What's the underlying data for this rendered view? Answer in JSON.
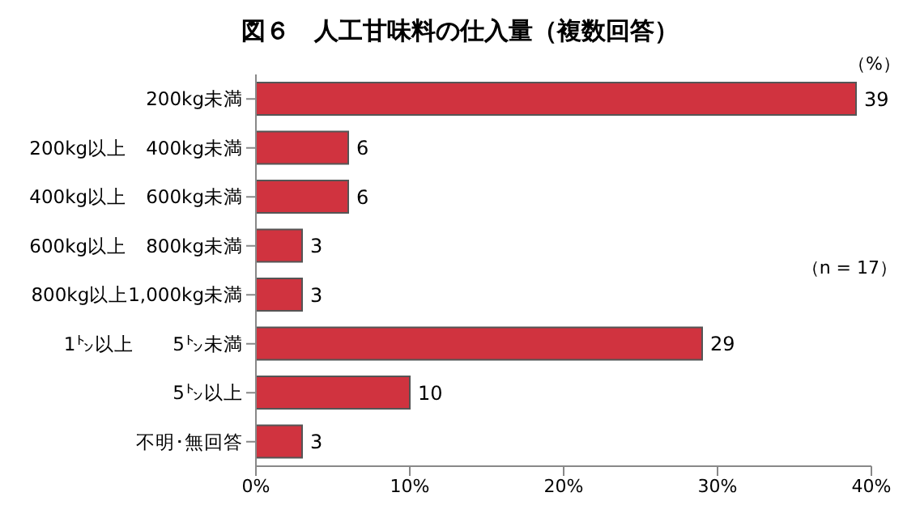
{
  "chart_data": {
    "type": "bar",
    "orientation": "horizontal",
    "title": "図６　人工甘味料の仕入量（複数回答）",
    "categories": [
      "200kg未満",
      "200kg以上　400kg未満",
      "400kg以上　600kg未満",
      "600kg以上　800kg未満",
      "800kg以上1,000kg未満",
      "1㌧以上　　5㌧未満",
      "5㌧以上",
      "不明･無回答"
    ],
    "values": [
      39,
      6,
      6,
      3,
      3,
      29,
      10,
      3
    ],
    "color": "#d0333f",
    "data_labels": true,
    "xlim": [
      0,
      40
    ],
    "xticks": [
      {
        "value": 0,
        "label": "0%"
      },
      {
        "value": 10,
        "label": "10%"
      },
      {
        "value": 20,
        "label": "20%"
      },
      {
        "value": 30,
        "label": "30%"
      },
      {
        "value": 40,
        "label": "40%"
      }
    ],
    "annotations": [
      "（%）",
      "（n = 17）"
    ]
  }
}
